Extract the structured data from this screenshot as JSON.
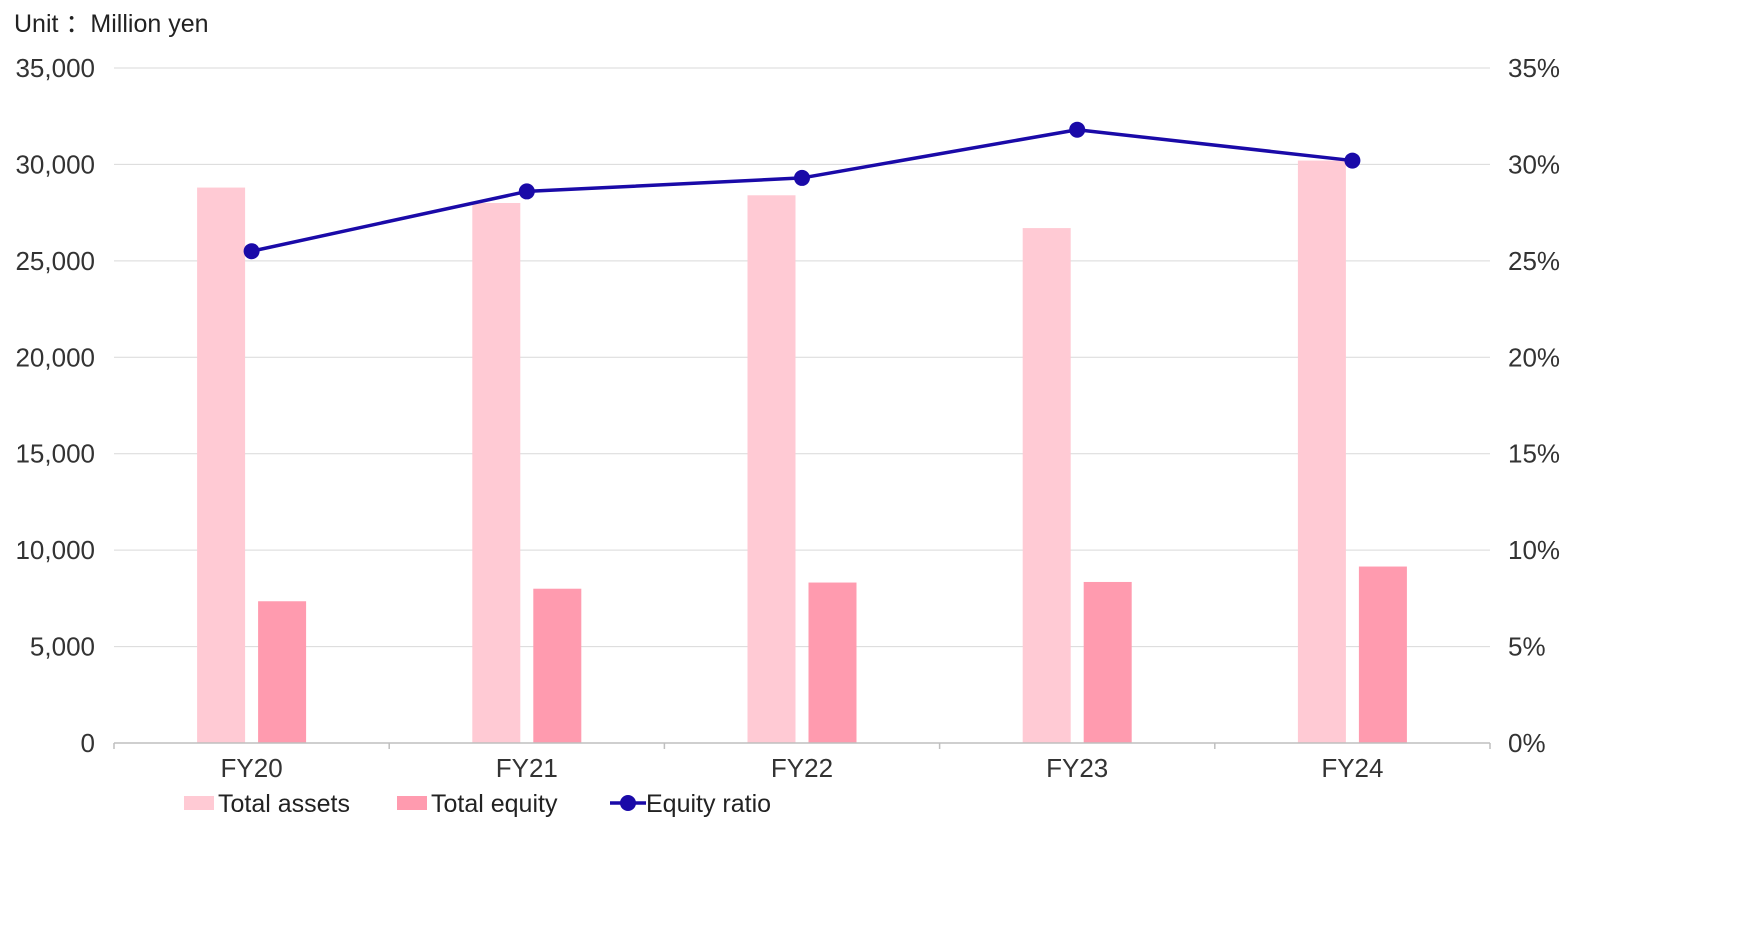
{
  "unit_label": "Unit ：Million yen",
  "chart_data": {
    "type": "bar",
    "categories": [
      "FY20",
      "FY21",
      "FY22",
      "FY23",
      "FY24"
    ],
    "series": [
      {
        "name": "Total assets",
        "kind": "bar",
        "axis": "left",
        "color": "#FFCAD4",
        "values": [
          28800,
          28000,
          28400,
          26700,
          30200
        ]
      },
      {
        "name": "Total equity",
        "kind": "bar",
        "axis": "left",
        "color": "#FF9BAF",
        "values": [
          7350,
          8000,
          8320,
          8350,
          9150
        ]
      },
      {
        "name": "Equity ratio",
        "kind": "line",
        "axis": "right",
        "color": "#1A0AA8",
        "values": [
          25.5,
          28.6,
          29.3,
          31.8,
          30.2
        ]
      }
    ],
    "y_left": {
      "range": [
        0,
        35000
      ],
      "ticks": [
        "0",
        "5,000",
        "10,000",
        "15,000",
        "20,000",
        "25,000",
        "30,000",
        "35,000"
      ]
    },
    "y_right": {
      "range": [
        0,
        35
      ],
      "ticks": [
        "0%",
        "5%",
        "10%",
        "15%",
        "20%",
        "25%",
        "30%",
        "35%"
      ]
    },
    "grid": true,
    "legend_position": "bottom-left"
  }
}
